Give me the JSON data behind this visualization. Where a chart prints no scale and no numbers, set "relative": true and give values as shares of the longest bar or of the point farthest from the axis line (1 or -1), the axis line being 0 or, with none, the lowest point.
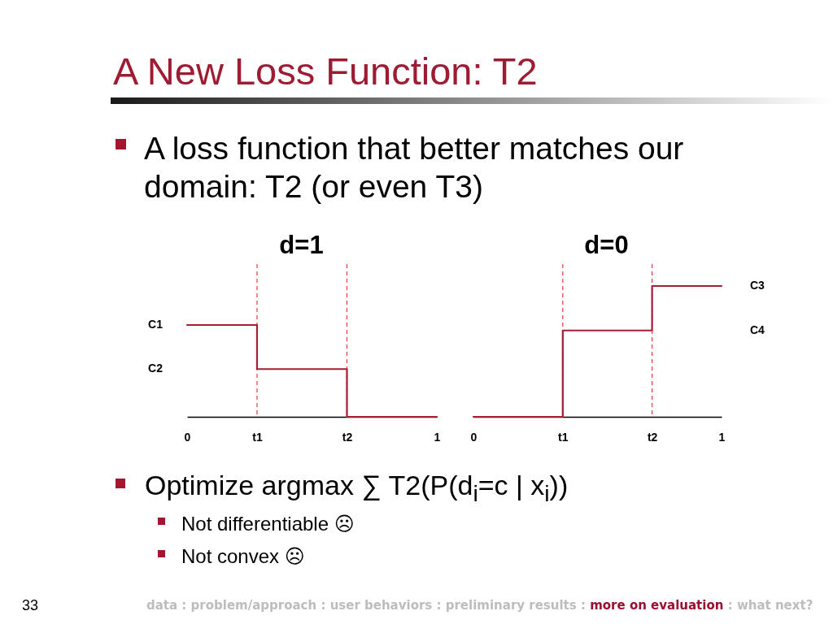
{
  "chart_data": [
    {
      "type": "other",
      "title": "A New Loss Function: T2",
      "annotations": [
        "A loss function that better matches our domain: T2 (or even T3)",
        "Optimize argmax ∑ T2(P(d$_{i}$=c | x$_{i}$))",
        "Not differentiable ☹",
        "Not convex ☹",
        "33",
        "data : problem/approach : user behaviors : preliminary results :",
        "more on evaluation",
        ": what next?"
      ]
    },
    {
      "type": "step",
      "title": "d=1",
      "x": [
        0,
        0.28,
        0.64,
        1
      ],
      "values": [
        1,
        0.52,
        0,
        0
      ],
      "color": "#a31f34",
      "relative": true,
      "xlim": [
        0,
        1
      ],
      "xticks": [
        {
          "value": 0,
          "label": "0"
        },
        {
          "value": 0.28,
          "label": "t1"
        },
        {
          "value": 0.64,
          "label": "t2"
        },
        {
          "value": 1,
          "label": "1"
        }
      ],
      "ref_lines": [
        {
          "axis": "x",
          "value": 0.28,
          "color": "#e8383d",
          "line_style": "dashed"
        },
        {
          "axis": "x",
          "value": 0.64,
          "color": "#e8383d",
          "line_style": "dashed"
        }
      ],
      "annotations": [
        "C1",
        "C2"
      ]
    },
    {
      "type": "step",
      "title": "d=0",
      "x": [
        0,
        0.36,
        0.72,
        1
      ],
      "values": [
        0,
        0.66,
        1,
        1
      ],
      "color": "#a31f34",
      "relative": true,
      "xlim": [
        0,
        1
      ],
      "xticks": [
        {
          "value": 0,
          "label": "0"
        },
        {
          "value": 0.36,
          "label": "t1"
        },
        {
          "value": 0.72,
          "label": "t2"
        },
        {
          "value": 1,
          "label": "1"
        }
      ],
      "ref_lines": [
        {
          "axis": "x",
          "value": 0.36,
          "color": "#e8383d",
          "line_style": "dashed"
        },
        {
          "axis": "x",
          "value": 0.72,
          "color": "#e8383d",
          "line_style": "dashed"
        }
      ],
      "annotations": [
        "C3",
        "C4"
      ]
    }
  ]
}
